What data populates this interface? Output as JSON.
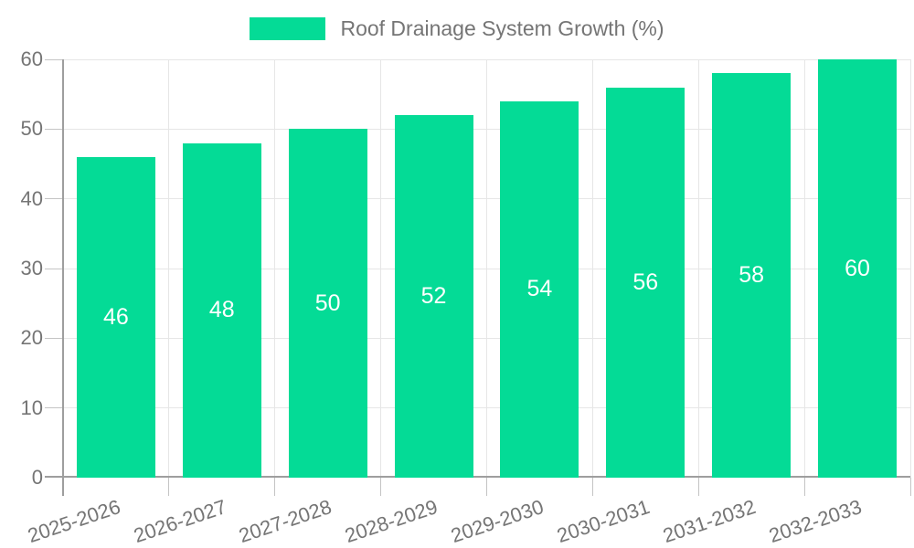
{
  "chart_data": {
    "type": "bar",
    "title": "",
    "legend": {
      "label": "Roof Drainage System Growth (%)",
      "position": "top-center"
    },
    "categories": [
      "2025-2026",
      "2026-2027",
      "2027-2028",
      "2028-2029",
      "2029-2030",
      "2030-2031",
      "2031-2032",
      "2032-2033"
    ],
    "series": [
      {
        "name": "Roof Drainage System Growth (%)",
        "values": [
          46,
          48,
          50,
          52,
          54,
          56,
          58,
          60
        ]
      }
    ],
    "value_labels_shown": true,
    "xlabel": "",
    "ylabel": "",
    "ylim": [
      0,
      60
    ],
    "ytick_step": 10,
    "yticks": [
      0,
      10,
      20,
      30,
      40,
      50,
      60
    ],
    "grid": true,
    "colors": {
      "bar": "#04DB96",
      "value_label": "#ffffff",
      "axis_text": "#757575",
      "axis_line": "#9e9e9e",
      "gridline": "#e6e6e6",
      "tick_line": "#c4c4c4",
      "background": "#ffffff"
    }
  }
}
